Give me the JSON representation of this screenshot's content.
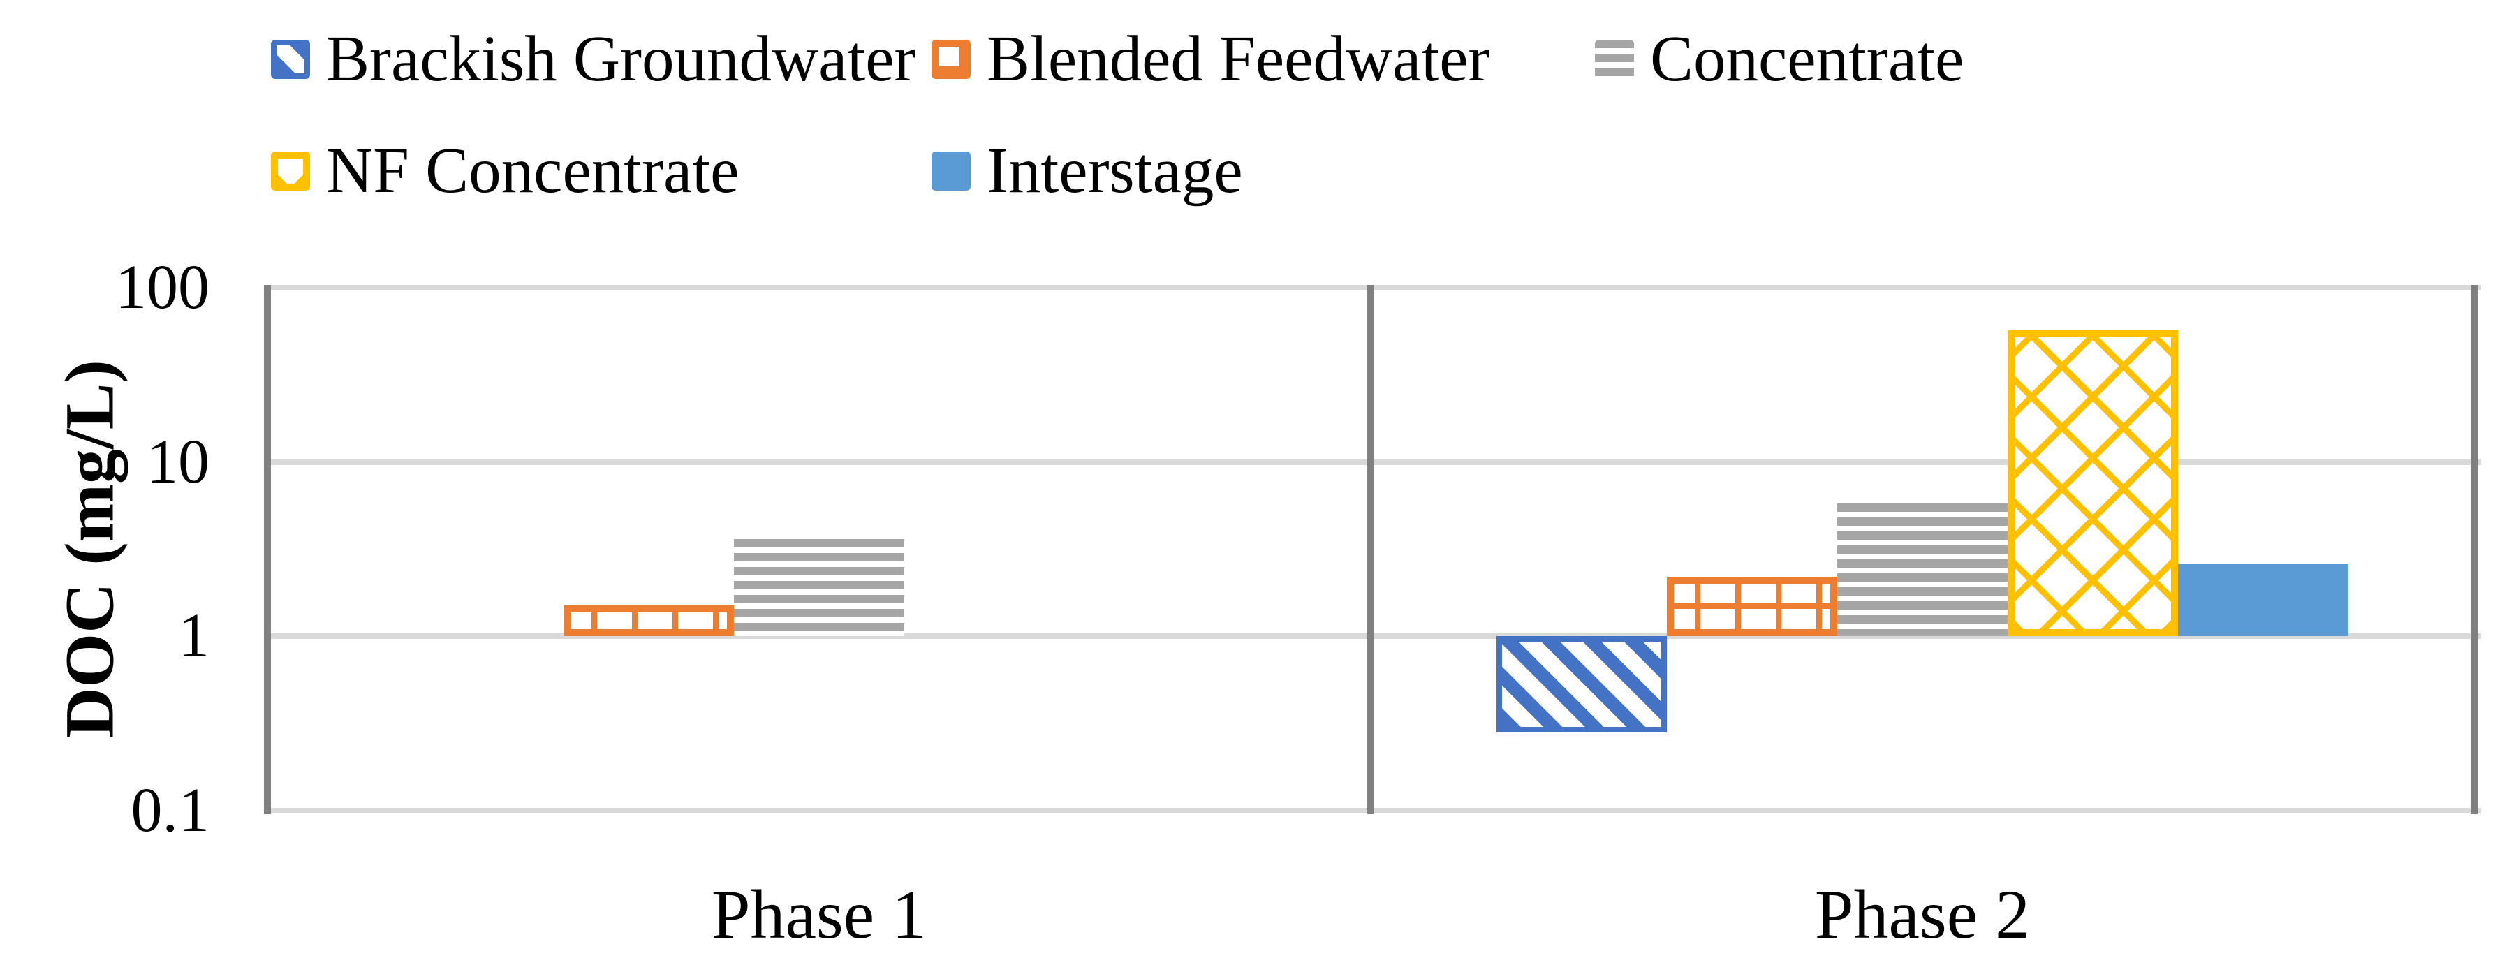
{
  "chart_data": {
    "type": "bar",
    "scale": "log",
    "title": "",
    "ylabel": "DOC (mg/L)",
    "xlabel": "",
    "categories": [
      "Phase 1",
      "Phase 2"
    ],
    "series": [
      {
        "name": "Brackish Groundwater",
        "color": "#4472C4",
        "pattern": "diagonal",
        "values": [
          null,
          0.28
        ]
      },
      {
        "name": "Blended Feedwater",
        "color": "#ED7D31",
        "pattern": "grid",
        "values": [
          1.5,
          2.2
        ]
      },
      {
        "name": "Concentrate",
        "color": "#A5A5A5",
        "pattern": "hstripes",
        "values": [
          3.6,
          5.8
        ]
      },
      {
        "name": "NF Concentrate",
        "color": "#FFC000",
        "pattern": "crosshatch",
        "values": [
          null,
          57
        ]
      },
      {
        "name": "Interstage",
        "color": "#5B9BD5",
        "pattern": "solid",
        "values": [
          null,
          2.6
        ]
      }
    ],
    "yticks": [
      100,
      10,
      1,
      0.1
    ],
    "ytick_labels": [
      "100",
      "10",
      "1",
      "0.1"
    ],
    "ylim": [
      0.1,
      100
    ],
    "bar_baseline": 1,
    "grid": "horizontal",
    "legend_position": "top-left",
    "colors": {
      "gridline": "#d9d9d9",
      "axis_line": "#808080",
      "text": "#000000"
    }
  }
}
